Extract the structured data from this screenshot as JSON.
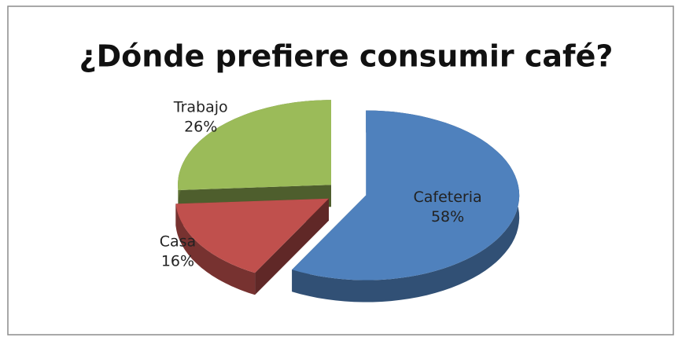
{
  "chart_data": {
    "type": "pie3d",
    "title": "¿Dónde prefiere consumir café?",
    "categories": [
      "Cafeteria",
      "Casa",
      "Trabajo"
    ],
    "values": [
      58,
      16,
      26
    ],
    "value_labels": [
      "58%",
      "16%",
      "26%"
    ],
    "colors": [
      "#4f81bd",
      "#c0504d",
      "#9bbb59"
    ]
  }
}
